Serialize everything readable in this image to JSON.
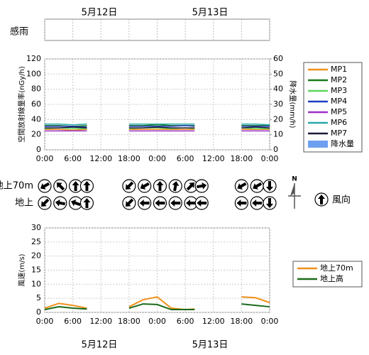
{
  "dates": [
    "5月12日",
    "5月13日"
  ],
  "rain_sense_label": "感雨",
  "chart_data": [
    {
      "type": "line",
      "y_label": "空間放射線量率(nGy/h)",
      "y2_label": "降水量(mm/h)",
      "x": [
        0,
        3,
        6,
        9,
        13,
        18,
        21,
        24,
        27,
        30,
        32,
        37,
        42,
        45,
        48
      ],
      "xlim": [
        0,
        48
      ],
      "xticks": [
        {
          "value": 0,
          "label": "0:00"
        },
        {
          "value": 6,
          "label": "6:00"
        },
        {
          "value": 12,
          "label": "12:00"
        },
        {
          "value": 18,
          "label": "18:00"
        },
        {
          "value": 24,
          "label": "0:00"
        },
        {
          "value": 30,
          "label": "6:00"
        },
        {
          "value": 36,
          "label": "12:00"
        },
        {
          "value": 42,
          "label": "18:00"
        },
        {
          "value": 48,
          "label": "0:00"
        }
      ],
      "ylim": [
        0,
        120
      ],
      "yticks": [
        0,
        20,
        40,
        60,
        80,
        100,
        120
      ],
      "y2lim": [
        0,
        60
      ],
      "y2ticks": [
        0,
        10,
        20,
        30,
        40,
        50,
        60
      ],
      "grid": true,
      "legend": "right",
      "series": [
        {
          "name": "MP1",
          "color": "#f0901c",
          "values": [
            27,
            27,
            26,
            27,
            null,
            27,
            27,
            27,
            27,
            27,
            27,
            null,
            27,
            27,
            27
          ]
        },
        {
          "name": "MP2",
          "color": "#1a7a1a",
          "values": [
            32,
            32,
            31,
            32,
            null,
            32,
            32,
            33,
            32,
            32,
            32,
            null,
            32,
            32,
            32
          ]
        },
        {
          "name": "MP3",
          "color": "#5cd65c",
          "values": [
            28,
            29,
            28,
            28,
            null,
            28,
            29,
            29,
            28,
            29,
            28,
            null,
            29,
            28,
            28
          ]
        },
        {
          "name": "MP4",
          "color": "#1f3fbf",
          "values": [
            31,
            31,
            31,
            30,
            null,
            31,
            31,
            31,
            31,
            32,
            31,
            null,
            31,
            31,
            31
          ]
        },
        {
          "name": "MP5",
          "color": "#9b30c8",
          "values": [
            25,
            25,
            25,
            25,
            null,
            25,
            25,
            25,
            25,
            25,
            25,
            null,
            25,
            25,
            25
          ]
        },
        {
          "name": "MP6",
          "color": "#2aa8a8",
          "values": [
            34,
            34,
            33,
            34,
            null,
            34,
            34,
            34,
            34,
            34,
            34,
            null,
            34,
            34,
            33
          ]
        },
        {
          "name": "MP7",
          "color": "#1a1a3a",
          "values": [
            29,
            29,
            30,
            29,
            null,
            29,
            29,
            30,
            29,
            29,
            29,
            null,
            29,
            30,
            29
          ]
        },
        {
          "name": "降水量",
          "color": "#6ea0f0",
          "axis": "y2",
          "type": "bar",
          "values": [
            0,
            0,
            0,
            0,
            null,
            0,
            0,
            0,
            0,
            0,
            0,
            null,
            0,
            0,
            0
          ]
        }
      ]
    },
    {
      "type": "wind-arrow",
      "x": [
        0,
        3.3,
        6.6,
        9,
        18,
        21.3,
        24.6,
        27.9,
        31.2,
        33.5,
        42,
        45.3,
        48
      ],
      "rows": [
        {
          "name": "地上70m",
          "values": [
            240,
            315,
            0,
            0,
            225,
            240,
            0,
            10,
            45,
            80,
            240,
            240,
            180
          ]
        },
        {
          "name": "地上",
          "values": [
            225,
            280,
            290,
            0,
            225,
            270,
            270,
            270,
            270,
            270,
            270,
            270,
            180
          ]
        }
      ],
      "compass_label": "N",
      "legend_label": "風向"
    },
    {
      "type": "line",
      "y_label": "風速(m/s)",
      "x": [
        0,
        3,
        6,
        9,
        13,
        18,
        21,
        24,
        27,
        30,
        32,
        37,
        42,
        45,
        48
      ],
      "xlim": [
        0,
        48
      ],
      "xticks": [
        {
          "value": 0,
          "label": "0:00"
        },
        {
          "value": 6,
          "label": "6:00"
        },
        {
          "value": 12,
          "label": "12:00"
        },
        {
          "value": 18,
          "label": "18:00"
        },
        {
          "value": 24,
          "label": "0:00"
        },
        {
          "value": 30,
          "label": "6:00"
        },
        {
          "value": 36,
          "label": "12:00"
        },
        {
          "value": 42,
          "label": "18:00"
        },
        {
          "value": 48,
          "label": "0:00"
        }
      ],
      "ylim": [
        0,
        30
      ],
      "yticks": [
        0,
        5,
        10,
        15,
        20,
        25,
        30
      ],
      "grid": true,
      "legend": "right",
      "series": [
        {
          "name": "地上70m",
          "color": "#f0901c",
          "values": [
            1.5,
            3.2,
            2.5,
            1.5,
            null,
            2,
            4.5,
            5.5,
            1.5,
            1,
            1.2,
            null,
            5.5,
            5.2,
            3.5
          ]
        },
        {
          "name": "地上高",
          "color": "#1a6a1a",
          "values": [
            1,
            2,
            1.5,
            1.2,
            null,
            1.5,
            3,
            2.8,
            1,
            1,
            1,
            null,
            3,
            2.5,
            2
          ]
        }
      ]
    }
  ]
}
